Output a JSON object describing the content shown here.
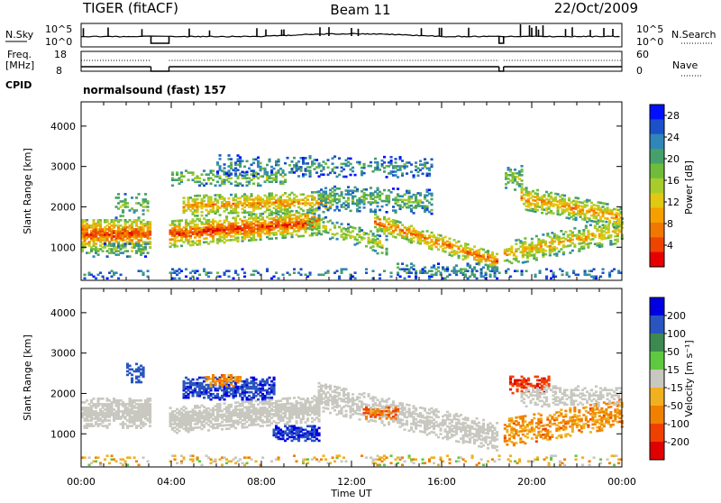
{
  "header": {
    "radar": "TIGER (fitACF)",
    "beam": "Beam 11",
    "date": "22/Oct/2009"
  },
  "strip": {
    "nsky_label": "N.Sky",
    "nsky_ticks": [
      "10^5",
      "10^0"
    ],
    "nsearch_label": "N.Search",
    "nsearch_ticks": [
      "10^5",
      "10^0"
    ],
    "freq_label": "Freq.",
    "freq_unit": "[MHz]",
    "freq_ticks": [
      "18",
      "8"
    ],
    "nave_label": "Nave",
    "nave_ticks": [
      "60",
      "0"
    ],
    "cpid_label": "CPID",
    "cpid_text": "normalsound (fast) 157"
  },
  "chart_data": [
    {
      "type": "heatmap",
      "title": "",
      "xlabel": "Time UT",
      "ylabel": "Slant Range [km]",
      "x_ticks": [
        "00:00",
        "04:00",
        "08:00",
        "12:00",
        "16:00",
        "20:00",
        "00:00"
      ],
      "xlim_hours": [
        0,
        24
      ],
      "ylim": [
        180,
        4600
      ],
      "y_ticks": [
        1000,
        2000,
        3000,
        4000
      ],
      "colorbar": {
        "label": "Power [dB]",
        "ticks": [
          "4",
          "8",
          "12",
          "16",
          "20",
          "24",
          "28"
        ],
        "range": [
          0,
          30
        ],
        "colors": [
          "#0010ff",
          "#1c50c8",
          "#2f86b8",
          "#46a06a",
          "#6fbc3c",
          "#a8cc2c",
          "#e2c812",
          "#f6a000",
          "#f07800",
          "#ee4400",
          "#e60000"
        ]
      },
      "data_gaps_hours": [
        [
          3.1,
          3.9
        ],
        [
          18.55,
          18.75
        ]
      ]
    },
    {
      "type": "heatmap",
      "title": "",
      "xlabel": "Time UT",
      "ylabel": "Slant Range [km]",
      "x_ticks": [
        "00:00",
        "04:00",
        "08:00",
        "12:00",
        "16:00",
        "20:00",
        "00:00"
      ],
      "xlim_hours": [
        0,
        24
      ],
      "ylim": [
        180,
        4600
      ],
      "y_ticks": [
        1000,
        2000,
        3000,
        4000
      ],
      "colorbar": {
        "label": "Velocity [m s⁻¹]",
        "ticks": [
          "200",
          "100",
          "50",
          "15",
          "-15",
          "-50",
          "-100",
          "-200"
        ],
        "colors": [
          "#0000e0",
          "#2a55c0",
          "#3c8a50",
          "#5ec840",
          "#c8c8c0",
          "#f0b020",
          "#f08000",
          "#f04000",
          "#e00000"
        ]
      },
      "data_gaps_hours": [
        [
          3.1,
          3.9
        ],
        [
          18.55,
          18.75
        ]
      ]
    }
  ]
}
